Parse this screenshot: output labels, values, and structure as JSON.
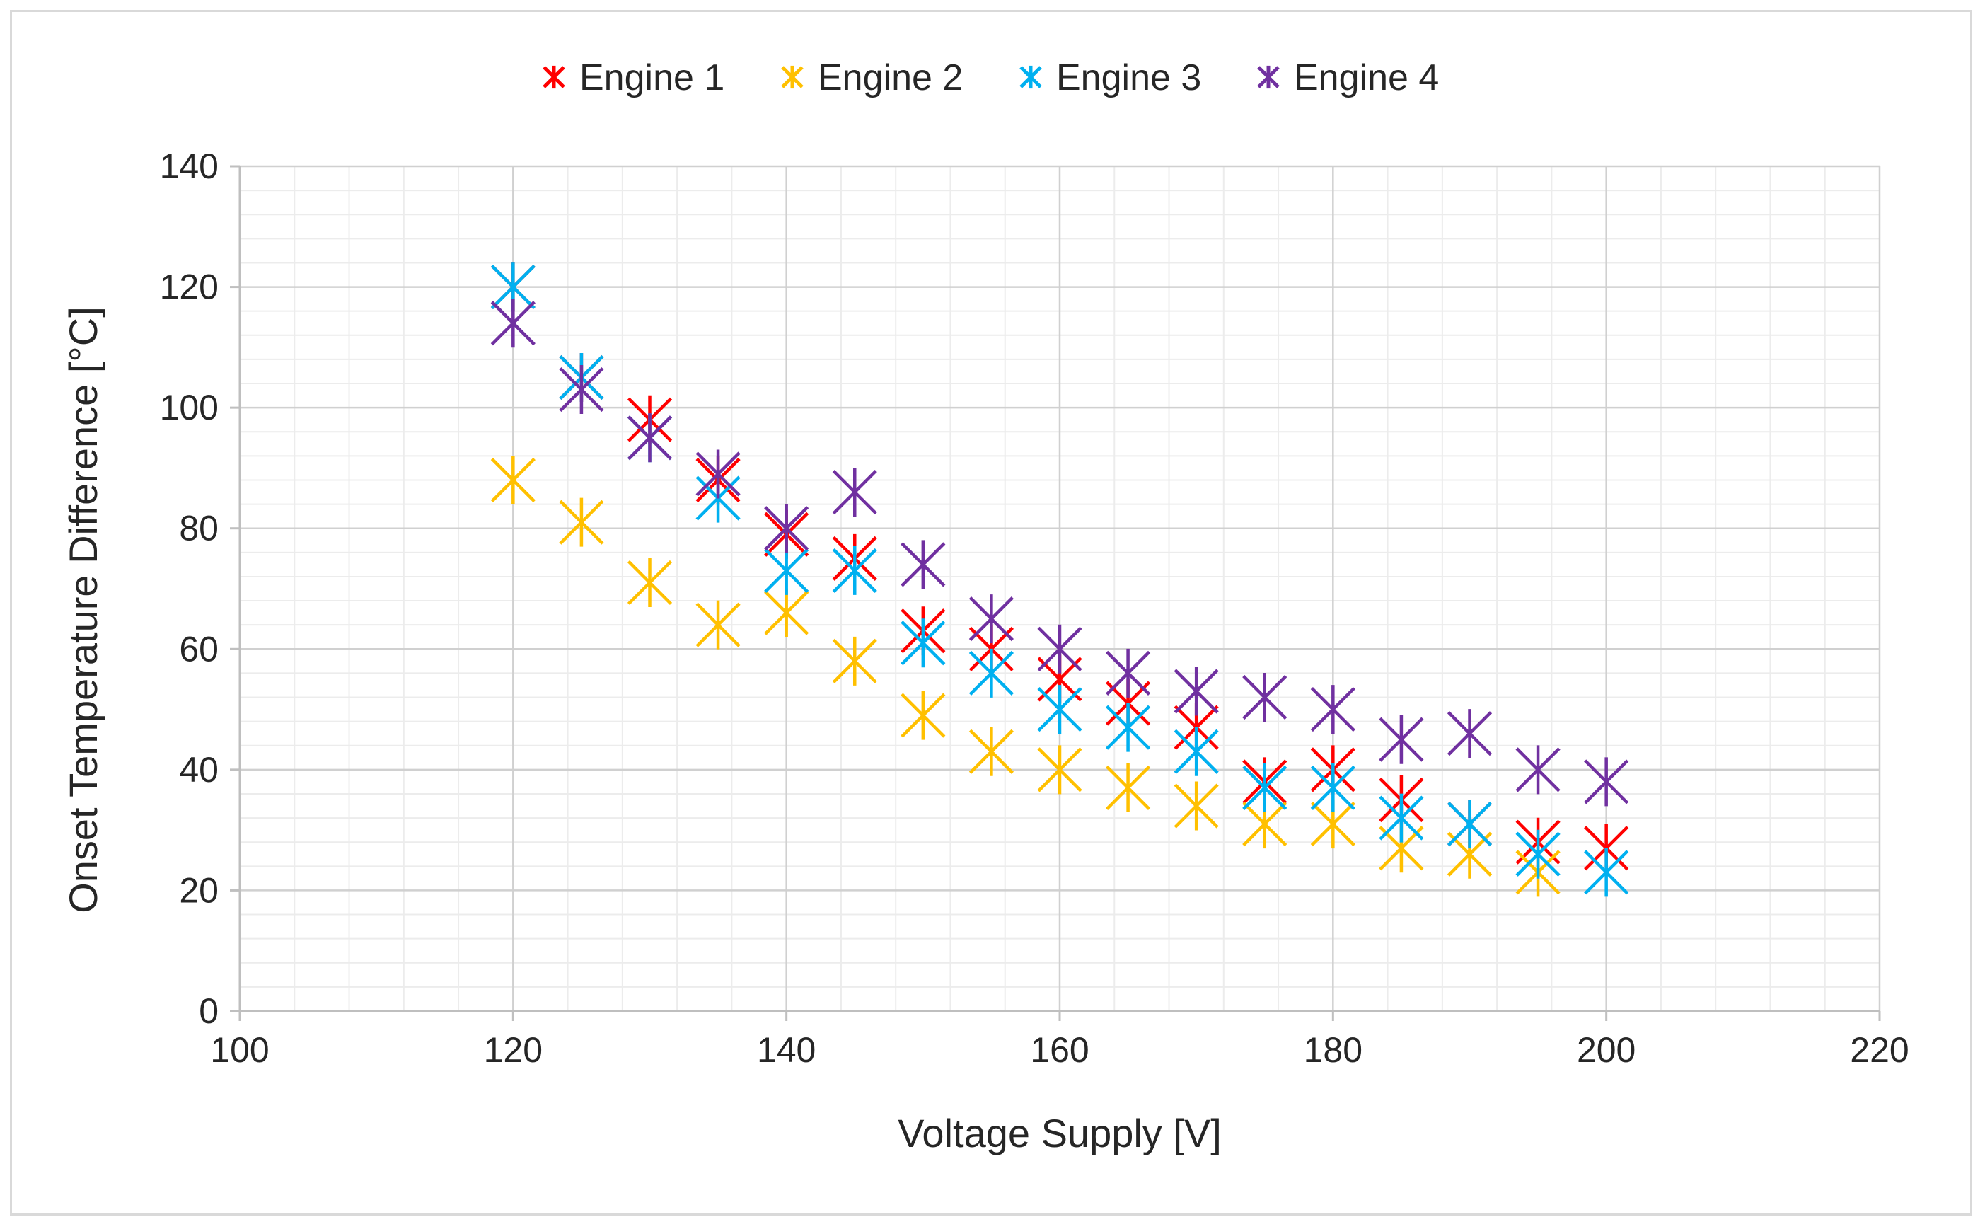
{
  "chart_data": {
    "type": "scatter",
    "title": "",
    "xlabel": "Voltage Supply  [V]",
    "ylabel": "Onset Temperature  Difference [°C]",
    "xlim": [
      100,
      220
    ],
    "ylim": [
      0,
      140
    ],
    "x_ticks": [
      100,
      120,
      140,
      160,
      180,
      200,
      220
    ],
    "y_ticks": [
      0,
      20,
      40,
      60,
      80,
      100,
      120,
      140
    ],
    "x_tick_labels": [
      "100",
      "120",
      "140",
      "160",
      "180",
      "200",
      "220"
    ],
    "y_tick_labels": [
      "0",
      "20",
      "40",
      "60",
      "80",
      "100",
      "120",
      "140"
    ],
    "grid": true,
    "legend_position": "top-center",
    "x": [
      120,
      125,
      130,
      135,
      140,
      145,
      150,
      155,
      160,
      165,
      170,
      175,
      180,
      185,
      190,
      195,
      200
    ],
    "series": [
      {
        "name": "Engine 1",
        "color": "#ff0000",
        "values": [
          120,
          105,
          98,
          88,
          79,
          75,
          63,
          60,
          55,
          51,
          47,
          38,
          40,
          35,
          31,
          28,
          27
        ]
      },
      {
        "name": "Engine 2",
        "color": "#ffc000",
        "values": [
          88,
          81,
          71,
          64,
          66,
          58,
          49,
          43,
          40,
          37,
          34,
          31,
          31,
          27,
          26,
          23,
          null
        ]
      },
      {
        "name": "Engine 3",
        "color": "#00b0f0",
        "values": [
          120,
          105,
          95,
          85,
          73,
          73,
          61,
          56,
          50,
          47,
          43,
          37,
          37,
          32,
          31,
          26,
          23
        ]
      },
      {
        "name": "Engine 4",
        "color": "#7030a0",
        "values": [
          114,
          103,
          95,
          89,
          80,
          86,
          74,
          65,
          60,
          56,
          53,
          52,
          50,
          45,
          46,
          40,
          38
        ]
      }
    ]
  }
}
